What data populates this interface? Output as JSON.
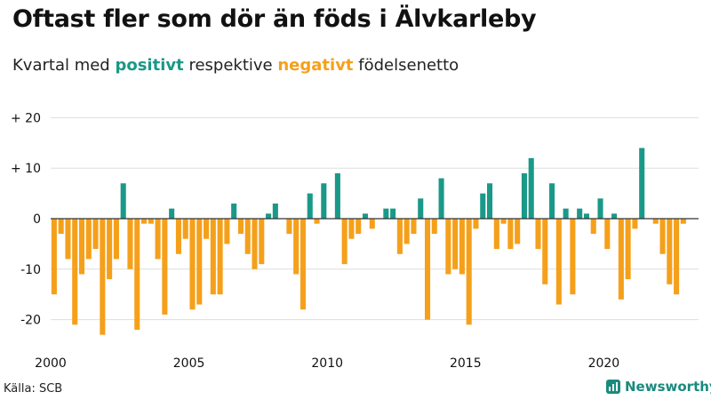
{
  "header": {
    "title": "Oftast fler som dör än föds i Älvkarleby",
    "subtitle_prefix": "Kvartal med",
    "subtitle_positive": "positivt",
    "subtitle_middle": "respektive",
    "subtitle_negative": "negativt",
    "subtitle_suffix": "födelsenetto"
  },
  "footer": {
    "source": "Källa: SCB",
    "brand": "Newsworthy"
  },
  "colors": {
    "positive": "#1a9988",
    "negative": "#f5a01a",
    "grid": "#dddddd",
    "zero_line": "#333333"
  },
  "chart_data": {
    "type": "bar",
    "x_start_year": 2000,
    "periods_per_year": 4,
    "values": [
      -15,
      -3,
      -8,
      -21,
      -11,
      -8,
      -6,
      -23,
      -12,
      -8,
      7,
      -10,
      -22,
      -1,
      -1,
      -8,
      -19,
      2,
      -7,
      -4,
      -18,
      -17,
      -4,
      -15,
      -15,
      -5,
      3,
      -3,
      -7,
      -10,
      -9,
      1,
      3,
      0,
      -3,
      -11,
      -18,
      5,
      -1,
      7,
      0,
      9,
      -9,
      -4,
      -3,
      1,
      -2,
      0,
      2,
      2,
      -7,
      -5,
      -3,
      4,
      -20,
      -3,
      8,
      -11,
      -10,
      -11,
      -21,
      -2,
      5,
      7,
      -6,
      -1,
      -6,
      -5,
      9,
      12,
      -6,
      -13,
      7,
      -17,
      2,
      -15,
      2,
      1,
      -3,
      4,
      -6,
      1,
      -16,
      -12,
      -2,
      14,
      0,
      -1,
      -7,
      -13,
      -15,
      -1
    ],
    "ylim": [
      -25,
      22
    ],
    "y_ticks": [
      {
        "value": 20,
        "label": "+ 20"
      },
      {
        "value": 10,
        "label": "+ 10"
      },
      {
        "value": 0,
        "label": "0"
      },
      {
        "value": -10,
        "label": "-10"
      },
      {
        "value": -20,
        "label": "-20"
      }
    ],
    "x_ticks": [
      {
        "year": 2000,
        "label": "2000"
      },
      {
        "year": 2005,
        "label": "2005"
      },
      {
        "year": 2010,
        "label": "2010"
      },
      {
        "year": 2015,
        "label": "2015"
      },
      {
        "year": 2020,
        "label": "2020"
      }
    ],
    "grid": true
  }
}
